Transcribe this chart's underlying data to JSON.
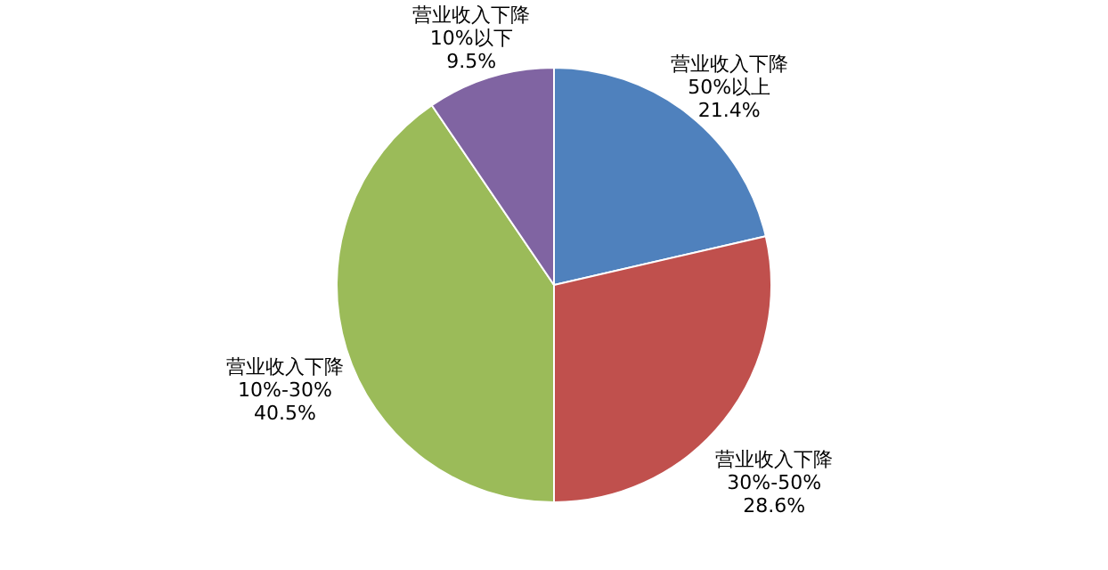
{
  "chart_data": {
    "type": "pie",
    "categories": [
      "营业收入下降\n50%以上",
      "营业收入下降\n30%-50%",
      "营业收入下降\n10%-30%",
      "营业收入下降\n10%以下"
    ],
    "values": [
      21.4,
      28.6,
      40.5,
      9.5
    ],
    "value_labels": [
      "21.4%",
      "28.6%",
      "40.5%",
      "9.5%"
    ],
    "colors": [
      "#4f81bd",
      "#c0504d",
      "#9bbb59",
      "#8064a2"
    ]
  }
}
